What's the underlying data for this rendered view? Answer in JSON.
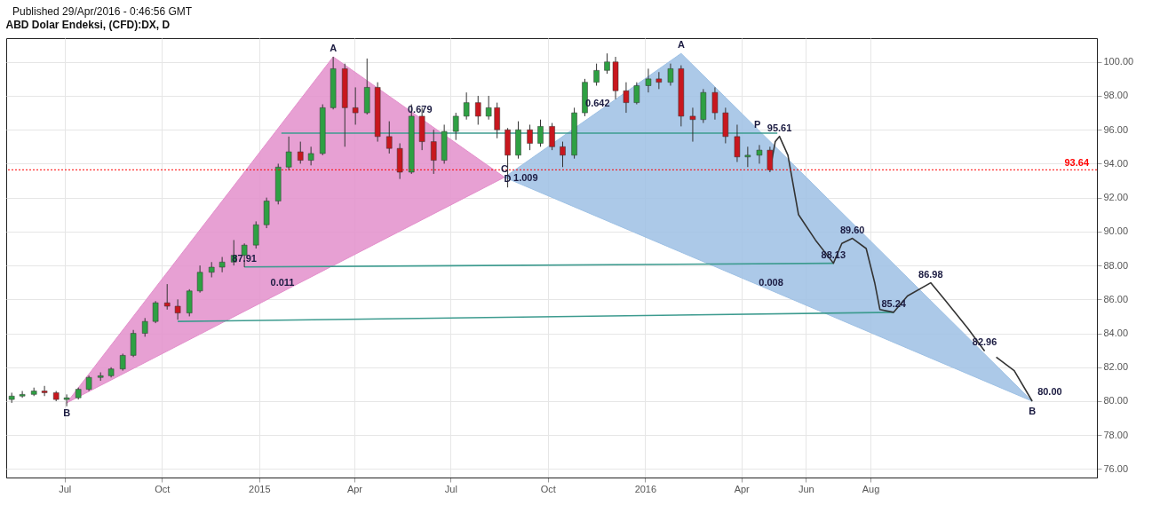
{
  "chart_data": {
    "type": "candlestick",
    "title": "ABD Dolar Endeksi, (CFD):DX, D",
    "annotations": [
      "Published 29/Apr/2016 - 0:46:56 GMT",
      {
        "text": "A",
        "x": "2015-03-12",
        "y": 100.3
      },
      {
        "text": "B",
        "x": "2014-07-03",
        "y": 79.9
      },
      {
        "text": "0.679",
        "x": "2015-06-02",
        "y": 96.7
      },
      {
        "text": "0.011",
        "x": "2015-01-23",
        "y": 86.5
      },
      {
        "text": "C",
        "x": "2015-08-21",
        "y": 93.2
      },
      {
        "text": "1.009",
        "x": "2015-09-10",
        "y": 92.67
      },
      {
        "text": "D",
        "x": "2015-08-24",
        "y": 92.6
      },
      {
        "text": "0.642",
        "x": "2015-11-17",
        "y": 97.05
      },
      {
        "text": "0.008",
        "x": "2016-04-29",
        "y": 86.5
      },
      {
        "text": "A",
        "x": "2016-02-04",
        "y": 100.5
      },
      {
        "text": "B",
        "x": "2017-01-01",
        "y": 80.0
      },
      {
        "text": "P",
        "x": "2016-04-16",
        "y": 95.8
      },
      {
        "text": "87.91",
        "x": "2014-12-18",
        "y": 87.91
      },
      {
        "text": "95.61",
        "x": "2016-05-07",
        "y": 95.61
      },
      {
        "text": "88.13",
        "x": "2016-06-27",
        "y": 88.13
      },
      {
        "text": "89.60",
        "x": "2016-07-15",
        "y": 89.6
      },
      {
        "text": "85.24",
        "x": "2016-08-23",
        "y": 85.24
      },
      {
        "text": "86.98",
        "x": "2016-09-27",
        "y": 86.98
      },
      {
        "text": "82.96",
        "x": "2016-11-17",
        "y": 82.96
      },
      {
        "text": "80.00",
        "x": "2017-01-01",
        "y": 80.0
      }
    ],
    "x": [
      "2014-05-12",
      "2014-05-22",
      "2014-06-02",
      "2014-06-12",
      "2014-06-23",
      "2014-07-03",
      "2014-07-14",
      "2014-07-24",
      "2014-08-04",
      "2014-08-14",
      "2014-08-25",
      "2014-09-04",
      "2014-09-15",
      "2014-09-25",
      "2014-10-06",
      "2014-10-16",
      "2014-10-27",
      "2014-11-06",
      "2014-11-17",
      "2014-11-27",
      "2014-12-08",
      "2014-12-18",
      "2014-12-29",
      "2015-01-08",
      "2015-01-19",
      "2015-01-29",
      "2015-02-09",
      "2015-02-19",
      "2015-03-02",
      "2015-03-12",
      "2015-03-23",
      "2015-04-02",
      "2015-04-13",
      "2015-04-23",
      "2015-05-04",
      "2015-05-14",
      "2015-05-25",
      "2015-06-04",
      "2015-06-15",
      "2015-06-25",
      "2015-07-06",
      "2015-07-16",
      "2015-07-27",
      "2015-08-06",
      "2015-08-14",
      "2015-08-24",
      "2015-09-03",
      "2015-09-14",
      "2015-09-24",
      "2015-10-05",
      "2015-10-15",
      "2015-10-26",
      "2015-11-05",
      "2015-11-16",
      "2015-11-26",
      "2015-12-04",
      "2015-12-14",
      "2015-12-24",
      "2016-01-04",
      "2016-01-14",
      "2016-01-25",
      "2016-02-04",
      "2016-02-15",
      "2016-02-25",
      "2016-03-07",
      "2016-03-17",
      "2016-03-28",
      "2016-04-07",
      "2016-04-18",
      "2016-04-28"
    ],
    "ohlc": [
      [
        80.1,
        80.5,
        79.9,
        80.3
      ],
      [
        80.3,
        80.6,
        80.2,
        80.4
      ],
      [
        80.4,
        80.8,
        80.3,
        80.6
      ],
      [
        80.6,
        80.9,
        80.3,
        80.5
      ],
      [
        80.5,
        80.6,
        80.0,
        80.1
      ],
      [
        80.1,
        80.4,
        79.7,
        80.2
      ],
      [
        80.2,
        80.8,
        80.1,
        80.7
      ],
      [
        80.7,
        81.5,
        80.6,
        81.4
      ],
      [
        81.4,
        81.7,
        81.2,
        81.5
      ],
      [
        81.5,
        82.0,
        81.4,
        81.9
      ],
      [
        81.9,
        82.8,
        81.8,
        82.7
      ],
      [
        82.7,
        84.2,
        82.6,
        84.0
      ],
      [
        84.0,
        84.9,
        83.8,
        84.7
      ],
      [
        84.7,
        85.9,
        84.6,
        85.8
      ],
      [
        85.8,
        86.9,
        85.4,
        85.6
      ],
      [
        85.6,
        86.0,
        84.8,
        85.2
      ],
      [
        85.2,
        86.6,
        85.0,
        86.5
      ],
      [
        86.5,
        88.0,
        86.4,
        87.6
      ],
      [
        87.6,
        88.2,
        87.3,
        87.9
      ],
      [
        87.9,
        88.5,
        87.6,
        88.2
      ],
      [
        88.2,
        89.5,
        88.0,
        88.6
      ],
      [
        88.6,
        89.3,
        87.9,
        89.2
      ],
      [
        89.2,
        90.6,
        89.0,
        90.4
      ],
      [
        90.4,
        92.0,
        90.2,
        91.8
      ],
      [
        91.8,
        94.0,
        91.6,
        93.8
      ],
      [
        93.8,
        95.6,
        93.6,
        94.7
      ],
      [
        94.7,
        95.3,
        94.0,
        94.2
      ],
      [
        94.2,
        95.0,
        93.9,
        94.6
      ],
      [
        94.6,
        97.5,
        94.5,
        97.3
      ],
      [
        97.3,
        100.3,
        97.2,
        99.6
      ],
      [
        99.6,
        99.9,
        95.0,
        97.3
      ],
      [
        97.3,
        98.5,
        96.3,
        97.0
      ],
      [
        97.0,
        100.2,
        96.9,
        98.5
      ],
      [
        98.5,
        98.8,
        95.3,
        95.6
      ],
      [
        95.6,
        96.5,
        94.6,
        94.9
      ],
      [
        94.9,
        95.2,
        93.1,
        93.5
      ],
      [
        93.5,
        97.5,
        93.4,
        96.8
      ],
      [
        96.8,
        97.3,
        94.8,
        95.3
      ],
      [
        95.3,
        96.0,
        93.4,
        94.2
      ],
      [
        94.2,
        96.3,
        94.0,
        95.9
      ],
      [
        95.9,
        97.0,
        95.4,
        96.8
      ],
      [
        96.8,
        98.2,
        96.6,
        97.6
      ],
      [
        97.6,
        98.0,
        96.3,
        96.8
      ],
      [
        96.8,
        98.0,
        96.6,
        97.3
      ],
      [
        97.3,
        97.6,
        95.5,
        96.0
      ],
      [
        96.0,
        96.1,
        92.6,
        94.5
      ],
      [
        94.5,
        96.5,
        94.3,
        96.0
      ],
      [
        96.0,
        96.3,
        94.8,
        95.2
      ],
      [
        95.2,
        96.6,
        95.0,
        96.2
      ],
      [
        96.2,
        96.4,
        94.8,
        95.0
      ],
      [
        95.0,
        95.3,
        93.8,
        94.5
      ],
      [
        94.5,
        97.3,
        94.3,
        97.0
      ],
      [
        97.0,
        99.0,
        96.8,
        98.8
      ],
      [
        98.8,
        99.9,
        98.6,
        99.5
      ],
      [
        99.5,
        100.5,
        99.3,
        100.0
      ],
      [
        100.0,
        100.3,
        97.8,
        98.3
      ],
      [
        98.3,
        98.8,
        97.0,
        97.6
      ],
      [
        97.6,
        98.8,
        97.5,
        98.6
      ],
      [
        98.6,
        99.6,
        98.2,
        99.0
      ],
      [
        99.0,
        99.4,
        98.4,
        98.8
      ],
      [
        98.8,
        99.9,
        98.6,
        99.6
      ],
      [
        99.6,
        99.8,
        96.2,
        96.8
      ],
      [
        96.8,
        97.3,
        95.3,
        96.6
      ],
      [
        96.6,
        98.4,
        96.4,
        98.2
      ],
      [
        98.2,
        98.5,
        96.6,
        97.0
      ],
      [
        97.0,
        97.3,
        95.2,
        95.6
      ],
      [
        95.6,
        96.3,
        94.1,
        94.4
      ],
      [
        94.4,
        95.0,
        93.8,
        94.5
      ],
      [
        94.5,
        95.1,
        94.0,
        94.8
      ],
      [
        94.8,
        95.0,
        93.5,
        93.64
      ]
    ],
    "series": [
      {
        "type": "area",
        "color": "#e38fcb",
        "x": [
          "2014-07-03",
          "2015-03-12",
          "2015-08-21",
          "2014-07-03"
        ],
        "values": [
          79.9,
          100.3,
          93.2,
          79.9
        ]
      },
      {
        "type": "area",
        "color": "#9dc0e4",
        "x": [
          "2015-08-21",
          "2016-02-04",
          "2017-01-01",
          "2015-08-21"
        ],
        "values": [
          93.2,
          100.5,
          80.0,
          93.2
        ]
      },
      {
        "type": "line",
        "color": "#3d9b8f",
        "x": [
          "2015-01-22",
          "2016-05-05"
        ],
        "values": [
          95.8,
          95.8
        ]
      },
      {
        "type": "line",
        "color": "#3d9b8f",
        "x": [
          "2014-12-18",
          "2016-06-27"
        ],
        "values": [
          87.91,
          88.13
        ]
      },
      {
        "type": "line",
        "color": "#3d9b8f",
        "x": [
          "2014-10-16",
          "2016-08-23"
        ],
        "values": [
          84.7,
          85.24
        ]
      },
      {
        "type": "line",
        "color": "#333333",
        "x": [
          "2016-04-28",
          "2016-05-03",
          "2016-05-07",
          "2016-05-15",
          "2016-05-25",
          "2016-06-10",
          "2016-06-25",
          "2016-06-27",
          "2016-07-05",
          "2016-07-15",
          "2016-07-28",
          "2016-08-05",
          "2016-08-10",
          "2016-08-23",
          "2016-09-05",
          "2016-09-27",
          "2016-10-10",
          "2016-11-01",
          "2016-11-17"
        ],
        "values": [
          93.6,
          95.3,
          95.61,
          94.5,
          91.0,
          89.5,
          88.3,
          88.13,
          89.3,
          89.6,
          89.0,
          87.0,
          85.4,
          85.24,
          86.2,
          86.98,
          86.0,
          84.3,
          82.96
        ]
      },
      {
        "type": "line",
        "color": "#333333",
        "x": [
          "2016-11-28",
          "2016-12-15",
          "2017-01-01"
        ],
        "values": [
          82.6,
          81.8,
          80.0
        ]
      }
    ],
    "xlim": [
      "2014-05-11",
      "2017-02-27"
    ],
    "ylim": [
      75.5,
      101.4
    ],
    "xticks": [
      {
        "value": "2014-07-01",
        "label": "Jul"
      },
      {
        "value": "2014-10-01",
        "label": "Oct"
      },
      {
        "value": "2015-01-01",
        "label": "2015"
      },
      {
        "value": "2015-04-01",
        "label": "Apr"
      },
      {
        "value": "2015-07-01",
        "label": "Jul"
      },
      {
        "value": "2015-10-01",
        "label": "Oct"
      },
      {
        "value": "2016-01-01",
        "label": "2016"
      },
      {
        "value": "2016-04-01",
        "label": "Apr"
      },
      {
        "value": "2016-06-01",
        "label": "Jun"
      },
      {
        "value": "2016-08-01",
        "label": "Aug"
      }
    ],
    "yticks": [
      {
        "value": 76,
        "label": "76.00"
      },
      {
        "value": 78,
        "label": "78.00"
      },
      {
        "value": 80,
        "label": "80.00"
      },
      {
        "value": 82,
        "label": "82.00"
      },
      {
        "value": 84,
        "label": "84.00"
      },
      {
        "value": 86,
        "label": "86.00"
      },
      {
        "value": 88,
        "label": "88.00"
      },
      {
        "value": 90,
        "label": "90.00"
      },
      {
        "value": 92,
        "label": "92.00"
      },
      {
        "value": 94,
        "label": "94.00"
      },
      {
        "value": 96,
        "label": "96.00"
      },
      {
        "value": 98,
        "label": "98.00"
      },
      {
        "value": 100,
        "label": "100.00"
      }
    ],
    "grid": true,
    "ref_lines": [
      {
        "axis": "y",
        "value": 93.64,
        "label": "93.64",
        "color": "#ff0000",
        "line_style": "dotted"
      }
    ]
  }
}
